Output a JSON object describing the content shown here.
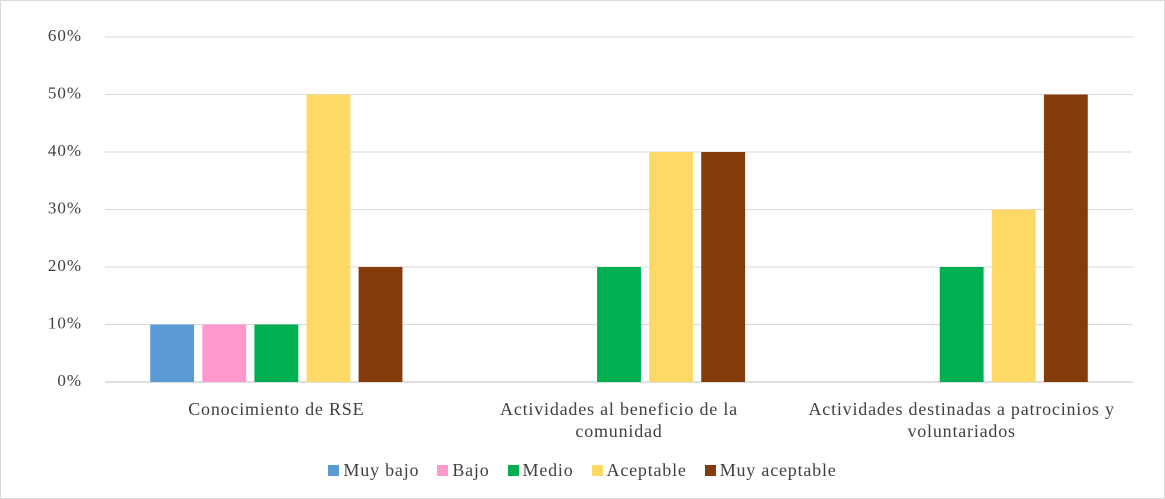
{
  "chart_data": {
    "type": "bar",
    "categories": [
      "Conocimiento de RSE",
      "Actividades al beneficio de la comunidad",
      "Actividades destinadas a patrocinios y voluntariados"
    ],
    "series": [
      {
        "name": "Muy bajo",
        "color": "#5b9bd5",
        "values": [
          10,
          0,
          0
        ]
      },
      {
        "name": "Bajo",
        "color": "#ff99cc",
        "values": [
          10,
          0,
          0
        ]
      },
      {
        "name": "Medio",
        "color": "#00b050",
        "values": [
          10,
          20,
          20
        ]
      },
      {
        "name": "Aceptable",
        "color": "#ffd966",
        "values": [
          50,
          40,
          30
        ]
      },
      {
        "name": "Muy aceptable",
        "color": "#843c0c",
        "values": [
          20,
          40,
          50
        ]
      }
    ],
    "ylim": [
      0,
      60
    ],
    "yticks": [
      {
        "value": 0,
        "label": "0%"
      },
      {
        "value": 10,
        "label": "10%"
      },
      {
        "value": 20,
        "label": "20%"
      },
      {
        "value": 30,
        "label": "30%"
      },
      {
        "value": 40,
        "label": "40%"
      },
      {
        "value": 50,
        "label": "50%"
      },
      {
        "value": 60,
        "label": "60%"
      }
    ],
    "grid": true,
    "legend": "bottom"
  }
}
